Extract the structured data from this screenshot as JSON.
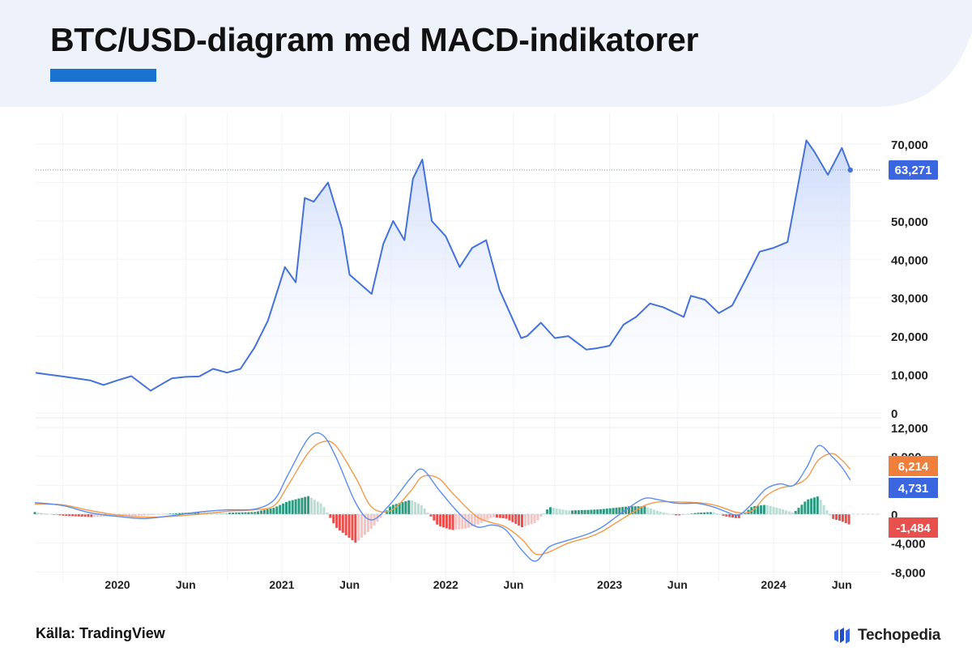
{
  "header": {
    "title": "BTC/USD-diagram med MACD-indikatorer"
  },
  "footer": {
    "source": "Källa: TradingView",
    "brand": "Techopedia"
  },
  "icons": {
    "brand_logo": "techopedia-logo-icon"
  },
  "colors": {
    "header_bg": "#eef3fb",
    "accent_bar": "#1a73d1",
    "price_line": "#4472d8",
    "price_fill_top": "#c9d8fa",
    "macd_line": "#5b8def",
    "signal_line": "#f2994a",
    "hist_pos_strong": "#2e9a80",
    "hist_pos_light": "#b9dfd5",
    "hist_neg_strong": "#e8504d",
    "hist_neg_light": "#f6c3c3",
    "badge_price": "#3a66e0",
    "badge_signal": "#f07f3c",
    "badge_macd": "#3a66e0",
    "badge_hist": "#e8504d"
  },
  "chart_data": [
    {
      "type": "area",
      "title": "",
      "xlabel": "",
      "ylabel": "",
      "ylim": [
        0,
        70000
      ],
      "y_ticks": [
        "70,000",
        "50,000",
        "40,000",
        "30,000",
        "20,000",
        "10,000",
        "0"
      ],
      "x_ticks": [
        "2020",
        "Jun",
        "2021",
        "Jun",
        "2022",
        "Jun",
        "2023",
        "Jun",
        "2024",
        "Jun"
      ],
      "x_tick_dates": [
        "2020-01-01",
        "2020-06-01",
        "2021-01-01",
        "2021-06-01",
        "2022-01-01",
        "2022-06-01",
        "2023-01-01",
        "2023-06-01",
        "2024-01-01",
        "2024-06-01"
      ],
      "last_price_label": "63,271",
      "grid": true,
      "series": [
        {
          "x": [
            "2019-07-01",
            "2019-08-01",
            "2019-09-01",
            "2019-10-01",
            "2019-11-01",
            "2019-12-01",
            "2020-01-01",
            "2020-02-01",
            "2020-03-15",
            "2020-04-01",
            "2020-05-01",
            "2020-06-01",
            "2020-07-01",
            "2020-08-01",
            "2020-09-01",
            "2020-10-01",
            "2020-11-01",
            "2020-12-01",
            "2021-01-08",
            "2021-02-01",
            "2021-02-21",
            "2021-03-13",
            "2021-04-14",
            "2021-05-15",
            "2021-06-01",
            "2021-07-20",
            "2021-08-15",
            "2021-09-06",
            "2021-10-01",
            "2021-10-20",
            "2021-11-10",
            "2021-12-01",
            "2022-01-01",
            "2022-02-01",
            "2022-03-01",
            "2022-04-01",
            "2022-05-01",
            "2022-06-18",
            "2022-07-01",
            "2022-08-01",
            "2022-09-01",
            "2022-10-01",
            "2022-11-10",
            "2022-12-01",
            "2023-01-01",
            "2023-02-01",
            "2023-03-01",
            "2023-04-01",
            "2023-05-01",
            "2023-06-15",
            "2023-07-01",
            "2023-08-01",
            "2023-09-01",
            "2023-10-01",
            "2023-11-01",
            "2023-12-01",
            "2024-01-01",
            "2024-02-01",
            "2024-03-14",
            "2024-04-01",
            "2024-05-01",
            "2024-06-01",
            "2024-06-20"
          ],
          "y": [
            10500,
            10000,
            9500,
            9000,
            8500,
            7300,
            8500,
            9600,
            5800,
            7000,
            9000,
            9400,
            9500,
            11500,
            10500,
            11500,
            17000,
            24000,
            38000,
            34000,
            56000,
            55000,
            60000,
            48000,
            36000,
            31000,
            44000,
            50000,
            45000,
            61000,
            66000,
            50000,
            46000,
            38000,
            43000,
            45000,
            32000,
            19500,
            20000,
            23500,
            19500,
            20000,
            16500,
            16800,
            17500,
            23000,
            25000,
            28500,
            27500,
            25000,
            30500,
            29500,
            26000,
            28000,
            35000,
            42000,
            43000,
            44500,
            71000,
            68000,
            62000,
            69000,
            63271
          ]
        }
      ]
    },
    {
      "type": "line",
      "title": "",
      "ylim": [
        -8000,
        12000
      ],
      "y_ticks": [
        "12,000",
        "8,000",
        "0",
        "-4,000",
        "-8,000"
      ],
      "badges": {
        "signal": "6,214",
        "macd": "4,731",
        "histogram": "-1,484"
      },
      "series": [
        {
          "key": "macd",
          "x": [
            "2019-07-01",
            "2019-09-01",
            "2019-11-01",
            "2020-01-01",
            "2020-03-01",
            "2020-05-01",
            "2020-07-01",
            "2020-09-01",
            "2020-11-01",
            "2020-12-15",
            "2021-01-15",
            "2021-03-01",
            "2021-04-01",
            "2021-05-01",
            "2021-06-15",
            "2021-07-20",
            "2021-09-01",
            "2021-10-15",
            "2021-11-10",
            "2021-12-15",
            "2022-01-15",
            "2022-02-15",
            "2022-03-15",
            "2022-04-15",
            "2022-05-15",
            "2022-06-20",
            "2022-07-20",
            "2022-08-20",
            "2022-10-01",
            "2022-11-15",
            "2022-12-15",
            "2023-01-15",
            "2023-02-15",
            "2023-03-20",
            "2023-04-20",
            "2023-06-01",
            "2023-07-15",
            "2023-08-20",
            "2023-09-15",
            "2023-10-15",
            "2023-11-15",
            "2023-12-15",
            "2024-01-15",
            "2024-02-15",
            "2024-03-15",
            "2024-04-10",
            "2024-05-10",
            "2024-06-01",
            "2024-06-20"
          ],
          "y": [
            1600,
            1200,
            200,
            -300,
            -600,
            -200,
            300,
            600,
            700,
            2000,
            5500,
            10500,
            11000,
            8000,
            1500,
            -800,
            1500,
            5000,
            6200,
            3500,
            1200,
            -800,
            -1800,
            -1500,
            -2200,
            -5000,
            -6500,
            -4500,
            -3600,
            -2700,
            -1800,
            -400,
            1000,
            2200,
            2000,
            1500,
            1500,
            1000,
            400,
            -100,
            1500,
            3500,
            4200,
            4000,
            6500,
            9500,
            8000,
            6500,
            4731
          ]
        },
        {
          "key": "signal",
          "x": [
            "2019-07-01",
            "2019-09-01",
            "2019-11-01",
            "2020-01-01",
            "2020-03-01",
            "2020-05-01",
            "2020-07-01",
            "2020-09-01",
            "2020-11-01",
            "2020-12-15",
            "2021-01-15",
            "2021-03-01",
            "2021-04-01",
            "2021-05-01",
            "2021-06-15",
            "2021-07-20",
            "2021-09-01",
            "2021-10-15",
            "2021-11-10",
            "2021-12-15",
            "2022-01-15",
            "2022-02-15",
            "2022-03-15",
            "2022-04-15",
            "2022-05-15",
            "2022-06-20",
            "2022-07-20",
            "2022-08-20",
            "2022-10-01",
            "2022-11-15",
            "2022-12-15",
            "2023-01-15",
            "2023-02-15",
            "2023-03-20",
            "2023-04-20",
            "2023-06-01",
            "2023-07-15",
            "2023-08-20",
            "2023-09-15",
            "2023-10-15",
            "2023-11-15",
            "2023-12-15",
            "2024-01-15",
            "2024-02-15",
            "2024-03-15",
            "2024-04-10",
            "2024-05-10",
            "2024-06-01",
            "2024-06-20"
          ],
          "y": [
            1400,
            1300,
            500,
            -100,
            -400,
            -300,
            0,
            400,
            600,
            1200,
            4000,
            8500,
            10000,
            9500,
            5000,
            1000,
            500,
            3200,
            5200,
            5000,
            3000,
            1000,
            -500,
            -1200,
            -1800,
            -3500,
            -5500,
            -5200,
            -4000,
            -3200,
            -2400,
            -1200,
            0,
            1200,
            1700,
            1700,
            1600,
            1300,
            800,
            200,
            500,
            2500,
            3600,
            4000,
            5000,
            7500,
            8400,
            7500,
            6214
          ]
        },
        {
          "key": "histogram",
          "x": [
            "2019-07-01",
            "2019-09-01",
            "2019-11-01",
            "2020-01-01",
            "2020-03-01",
            "2020-05-01",
            "2020-07-01",
            "2020-09-01",
            "2020-11-01",
            "2020-12-15",
            "2021-01-15",
            "2021-03-01",
            "2021-04-01",
            "2021-05-01",
            "2021-06-15",
            "2021-07-20",
            "2021-09-01",
            "2021-10-15",
            "2021-11-10",
            "2021-12-15",
            "2022-01-15",
            "2022-02-15",
            "2022-03-15",
            "2022-04-15",
            "2022-05-15",
            "2022-06-20",
            "2022-07-20",
            "2022-08-20",
            "2022-10-01",
            "2022-11-15",
            "2022-12-15",
            "2023-01-15",
            "2023-02-15",
            "2023-03-20",
            "2023-04-20",
            "2023-06-01",
            "2023-07-15",
            "2023-08-20",
            "2023-09-15",
            "2023-10-15",
            "2023-11-15",
            "2023-12-15",
            "2024-01-15",
            "2024-02-15",
            "2024-03-15",
            "2024-04-10",
            "2024-05-10",
            "2024-06-01",
            "2024-06-20"
          ],
          "y": [
            300,
            -200,
            -400,
            -300,
            -200,
            100,
            300,
            200,
            300,
            900,
            1800,
            2500,
            1400,
            -1800,
            -4000,
            -2000,
            1200,
            2000,
            1200,
            -1600,
            -2200,
            -2000,
            -1400,
            -400,
            -600,
            -1800,
            -1200,
            1000,
            500,
            600,
            700,
            900,
            1100,
            1100,
            400,
            -200,
            200,
            300,
            -300,
            -600,
            1100,
            1300,
            800,
            200,
            2000,
            2500,
            -600,
            -1000,
            -1484
          ]
        }
      ]
    }
  ]
}
